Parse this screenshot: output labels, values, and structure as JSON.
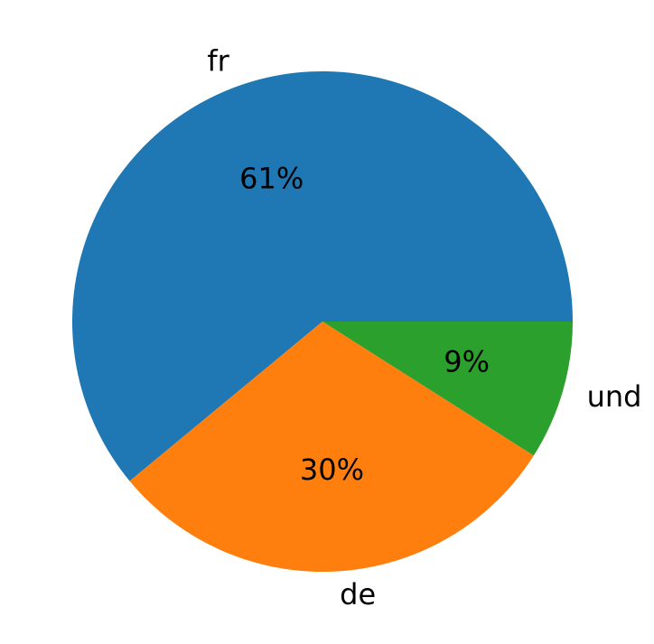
{
  "chart_data": {
    "type": "pie",
    "categories": [
      "fr",
      "de",
      "und"
    ],
    "values": [
      61,
      30,
      9
    ],
    "value_labels": [
      "61%",
      "30%",
      "9%"
    ],
    "colors": [
      "#1f77b4",
      "#ff7f0e",
      "#2ca02c"
    ]
  }
}
